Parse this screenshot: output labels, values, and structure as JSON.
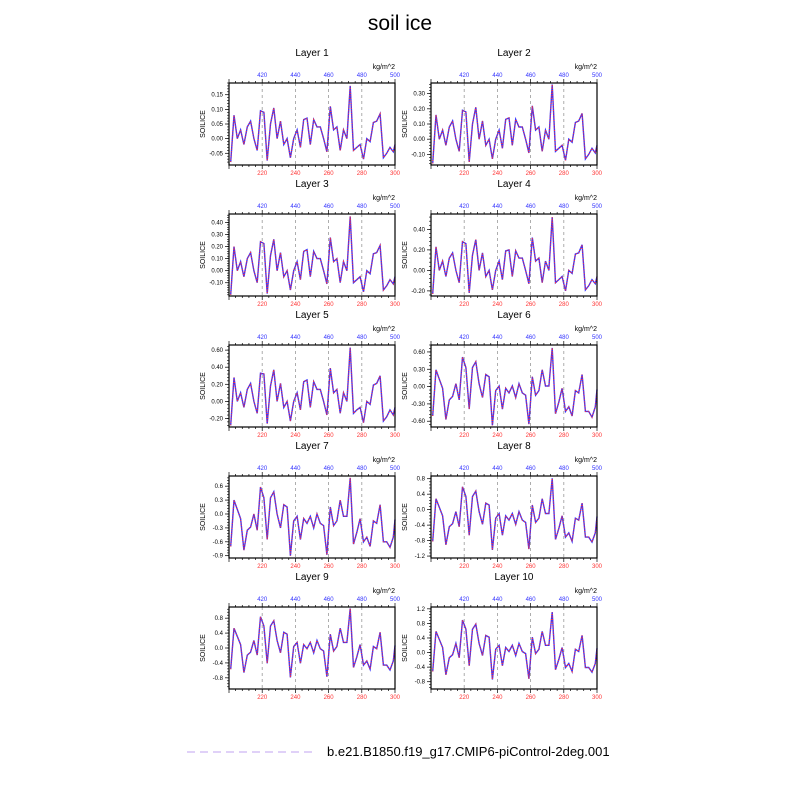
{
  "chart_data": {
    "type": "line",
    "title": "soil ice",
    "ylabel": "SOILICE",
    "units": "kg/m^2",
    "legend": {
      "position": "bottom",
      "entries": [
        "b.e21.B1850.f19_g17.CMIP6-piControl-2deg.001"
      ],
      "color": "#d6c2f5"
    },
    "line_colors": {
      "solid": "#3333ff",
      "dotted": "#ff3333"
    },
    "xlim": [
      200,
      300
    ],
    "bottom_ticks": [
      220,
      240,
      260,
      280,
      300
    ],
    "bottom_tick_labels": [
      "220",
      "240",
      "260",
      "280",
      "300"
    ],
    "top_tick_labels": [
      "420",
      "440",
      "460",
      "480",
      "500"
    ],
    "bottom_label_color": "#ff3333",
    "top_label_color": "#3333ff",
    "x": [
      201,
      203,
      205,
      207,
      209,
      211,
      213,
      215,
      217,
      219,
      221,
      223,
      225,
      227,
      229,
      231,
      233,
      235,
      237,
      239,
      241,
      243,
      245,
      247,
      249,
      251,
      253,
      255,
      257,
      259,
      261,
      263,
      265,
      267,
      269,
      271,
      273,
      275,
      277,
      279,
      281,
      283,
      285,
      287,
      289,
      291,
      293,
      295,
      297,
      299,
      300
    ],
    "panels": [
      {
        "title": "Layer 1",
        "ylim": [
          -0.09,
          0.19
        ],
        "yticks": [
          -0.05,
          0,
          0.05,
          0.1,
          0.15
        ],
        "ytick_labels": [
          "-0.05",
          "0.00",
          "0.05",
          "0.10",
          "0.15"
        ],
        "values": [
          -0.08,
          0.08,
          0.0,
          0.03,
          -0.02,
          0.04,
          0.06,
          0.0,
          -0.04,
          0.095,
          0.09,
          -0.075,
          0.05,
          0.105,
          0.0,
          0.06,
          -0.02,
          0.0,
          -0.065,
          0.0,
          0.03,
          -0.03,
          0.065,
          0.07,
          -0.02,
          0.065,
          0.04,
          0.04,
          0.0,
          -0.045,
          0.11,
          0.03,
          0.04,
          -0.04,
          0.03,
          0.0,
          0.18,
          -0.04,
          -0.03,
          -0.02,
          -0.07,
          0.0,
          -0.01,
          0.055,
          0.06,
          0.085,
          -0.065,
          -0.05,
          -0.03,
          -0.045,
          -0.02
        ]
      },
      {
        "title": "Layer 2",
        "ylim": [
          -0.17,
          0.37
        ],
        "yticks": [
          -0.1,
          0,
          0.1,
          0.2,
          0.3
        ],
        "ytick_labels": [
          "-0.10",
          "0.00",
          "0.10",
          "0.20",
          "0.30"
        ],
        "values": [
          -0.16,
          0.16,
          0,
          0.06,
          -0.04,
          0.08,
          0.12,
          0,
          -0.08,
          0.19,
          0.18,
          -0.15,
          0.1,
          0.21,
          0,
          0.12,
          -0.04,
          0,
          -0.13,
          0,
          0.06,
          -0.06,
          0.13,
          0.14,
          -0.04,
          0.13,
          0.08,
          0.08,
          0,
          -0.09,
          0.22,
          0.06,
          0.08,
          -0.08,
          0.06,
          0,
          0.36,
          -0.08,
          -0.06,
          -0.04,
          -0.14,
          0,
          -0.02,
          0.11,
          0.12,
          0.17,
          -0.13,
          -0.1,
          -0.06,
          -0.09,
          -0.04
        ]
      },
      {
        "title": "Layer 3",
        "ylim": [
          -0.21,
          0.47
        ],
        "yticks": [
          -0.1,
          0,
          0.1,
          0.2,
          0.3,
          0.4
        ],
        "ytick_labels": [
          "-0.10",
          "0.00",
          "0.10",
          "0.20",
          "0.30",
          "0.40"
        ],
        "values": [
          -0.2,
          0.2,
          0,
          0.075,
          -0.05,
          0.1,
          0.15,
          0,
          -0.1,
          0.24,
          0.225,
          -0.19,
          0.125,
          0.26,
          0,
          0.15,
          -0.05,
          0,
          -0.16,
          0,
          0.075,
          -0.075,
          0.16,
          0.175,
          -0.05,
          0.16,
          0.1,
          0.1,
          0,
          -0.11,
          0.275,
          0.075,
          0.1,
          -0.1,
          0.075,
          0,
          0.45,
          -0.1,
          -0.075,
          -0.05,
          -0.175,
          0,
          -0.025,
          0.14,
          0.15,
          0.21,
          -0.16,
          -0.125,
          -0.075,
          -0.11,
          -0.05
        ]
      },
      {
        "title": "Layer 4",
        "ylim": [
          -0.25,
          0.55
        ],
        "yticks": [
          -0.2,
          0,
          0.2,
          0.4
        ],
        "ytick_labels": [
          "-0.20",
          "0.00",
          "0.20",
          "0.40"
        ],
        "values": [
          -0.23,
          0.23,
          0,
          0.09,
          -0.06,
          0.12,
          0.17,
          0,
          -0.12,
          0.28,
          0.26,
          -0.22,
          0.15,
          0.3,
          0,
          0.17,
          -0.06,
          0,
          -0.19,
          0,
          0.09,
          -0.09,
          0.19,
          0.2,
          -0.06,
          0.19,
          0.12,
          0.12,
          0,
          -0.13,
          0.32,
          0.09,
          0.12,
          -0.12,
          0.09,
          0,
          0.52,
          -0.12,
          -0.09,
          -0.06,
          -0.2,
          0,
          -0.03,
          0.16,
          0.17,
          0.25,
          -0.19,
          -0.15,
          -0.09,
          -0.13,
          -0.06
        ]
      },
      {
        "title": "Layer 5",
        "ylim": [
          -0.3,
          0.66
        ],
        "yticks": [
          -0.2,
          0,
          0.2,
          0.4,
          0.6
        ],
        "ytick_labels": [
          "-0.20",
          "0.00",
          "0.20",
          "0.40",
          "0.60"
        ],
        "values": [
          -0.28,
          0.28,
          0,
          0.1,
          -0.07,
          0.14,
          0.21,
          0,
          -0.14,
          0.33,
          0.32,
          -0.26,
          0.18,
          0.37,
          0,
          0.21,
          -0.07,
          0,
          -0.23,
          0,
          0.1,
          -0.1,
          0.23,
          0.25,
          -0.07,
          0.23,
          0.14,
          0.14,
          0,
          -0.16,
          0.39,
          0.1,
          0.14,
          -0.14,
          0.1,
          0,
          0.63,
          -0.14,
          -0.1,
          -0.07,
          -0.25,
          0,
          -0.035,
          0.19,
          0.21,
          0.3,
          -0.23,
          -0.18,
          -0.1,
          -0.16,
          -0.07
        ]
      },
      {
        "title": "Layer 6",
        "ylim": [
          -0.7,
          0.72
        ],
        "yticks": [
          -0.6,
          -0.3,
          0,
          0.3,
          0.6
        ],
        "ytick_labels": [
          "-0.60",
          "-0.30",
          "0.00",
          "0.30",
          "0.60"
        ],
        "values": [
          -0.51,
          0.29,
          0.13,
          -0.03,
          -0.57,
          -0.23,
          -0.17,
          0.05,
          -0.23,
          0.51,
          0.33,
          -0.39,
          0.33,
          0.43,
          0.05,
          -0.19,
          0.21,
          0.17,
          -0.67,
          -0.07,
          0.01,
          -0.39,
          -0.03,
          -0.11,
          0.01,
          -0.19,
          0.05,
          -0.11,
          -0.15,
          -0.65,
          0.17,
          -0.15,
          -0.07,
          0.29,
          0.01,
          0.01,
          0.67,
          -0.47,
          -0.27,
          -0.03,
          -0.43,
          -0.35,
          -0.51,
          -0.07,
          -0.11,
          0.21,
          -0.43,
          -0.43,
          -0.53,
          -0.35,
          -0.05
        ]
      },
      {
        "title": "Layer 7",
        "ylim": [
          -0.95,
          0.82
        ],
        "yticks": [
          -0.9,
          -0.6,
          -0.3,
          0,
          0.3,
          0.6
        ],
        "ytick_labels": [
          "-0.9",
          "-0.6",
          "-0.3",
          "0.0",
          "0.3",
          "0.6"
        ],
        "values": [
          -0.7,
          0.3,
          0.1,
          -0.1,
          -0.78,
          -0.35,
          -0.28,
          0.0,
          -0.35,
          0.58,
          0.35,
          -0.55,
          0.35,
          0.48,
          0.0,
          -0.3,
          0.2,
          0.15,
          -0.9,
          -0.15,
          -0.05,
          -0.55,
          -0.1,
          -0.2,
          -0.05,
          -0.3,
          0.0,
          -0.2,
          -0.25,
          -0.88,
          0.15,
          -0.25,
          -0.15,
          0.3,
          -0.05,
          -0.05,
          0.78,
          -0.65,
          -0.4,
          -0.1,
          -0.6,
          -0.5,
          -0.7,
          -0.15,
          -0.2,
          0.2,
          -0.6,
          -0.6,
          -0.72,
          -0.5,
          -0.12
        ]
      },
      {
        "title": "Layer 8",
        "ylim": [
          -1.25,
          0.87
        ],
        "yticks": [
          -1.2,
          -0.8,
          -0.4,
          0,
          0.4,
          0.8
        ],
        "ytick_labels": [
          "-1.2",
          "-0.8",
          "-0.4",
          "0.0",
          "0.4",
          "0.8"
        ],
        "values": [
          -0.82,
          0.28,
          0.06,
          -0.16,
          -0.91,
          -0.44,
          -0.36,
          -0.05,
          -0.44,
          0.59,
          0.34,
          -0.66,
          0.34,
          0.48,
          -0.05,
          -0.38,
          0.17,
          0.12,
          -1.04,
          -0.22,
          -0.1,
          -0.66,
          -0.16,
          -0.27,
          -0.1,
          -0.38,
          -0.05,
          -0.27,
          -0.33,
          -1.02,
          0.12,
          -0.33,
          -0.22,
          0.28,
          -0.1,
          -0.1,
          0.81,
          -0.77,
          -0.49,
          -0.16,
          -0.71,
          -0.6,
          -0.82,
          -0.22,
          -0.27,
          0.17,
          -0.71,
          -0.71,
          -0.84,
          -0.6,
          -0.18
        ]
      },
      {
        "title": "Layer 9",
        "ylim": [
          -1.1,
          1.1
        ],
        "yticks": [
          -0.8,
          -0.4,
          0,
          0.4,
          0.8
        ],
        "ytick_labels": [
          "-0.8",
          "-0.4",
          "0.0",
          "0.4",
          "0.8"
        ],
        "values": [
          -0.57,
          0.53,
          0.31,
          0.09,
          -0.66,
          -0.19,
          -0.11,
          0.2,
          -0.19,
          0.84,
          0.59,
          -0.41,
          0.59,
          0.73,
          0.2,
          -0.13,
          0.42,
          0.37,
          -0.79,
          0.04,
          0.15,
          -0.41,
          0.09,
          -0.02,
          0.15,
          -0.13,
          0.2,
          -0.02,
          -0.08,
          -0.77,
          0.37,
          -0.08,
          0.04,
          0.53,
          0.15,
          0.15,
          1.06,
          -0.52,
          -0.24,
          0.09,
          -0.46,
          -0.35,
          -0.57,
          0.04,
          -0.02,
          0.42,
          -0.46,
          -0.46,
          -0.59,
          -0.35,
          0.07
        ]
      },
      {
        "title": "Layer 10",
        "ylim": [
          -1.0,
          1.25
        ],
        "yticks": [
          -0.8,
          -0.4,
          0,
          0.4,
          0.8,
          1.2
        ],
        "ytick_labels": [
          "-0.8",
          "-0.4",
          "0.0",
          "0.4",
          "0.8",
          "1.2"
        ],
        "values": [
          -0.52,
          0.58,
          0.36,
          0.14,
          -0.61,
          -0.14,
          -0.06,
          0.25,
          -0.14,
          0.89,
          0.64,
          -0.36,
          0.64,
          0.78,
          0.25,
          -0.08,
          0.47,
          0.42,
          -0.74,
          0.09,
          0.2,
          -0.36,
          0.14,
          0.03,
          0.2,
          -0.08,
          0.25,
          0.03,
          -0.03,
          -0.72,
          0.42,
          -0.03,
          0.09,
          0.58,
          0.2,
          0.2,
          1.11,
          -0.47,
          -0.19,
          0.14,
          -0.41,
          -0.3,
          -0.52,
          0.09,
          0.03,
          0.47,
          -0.41,
          -0.41,
          -0.54,
          -0.3,
          0.12
        ]
      }
    ]
  }
}
